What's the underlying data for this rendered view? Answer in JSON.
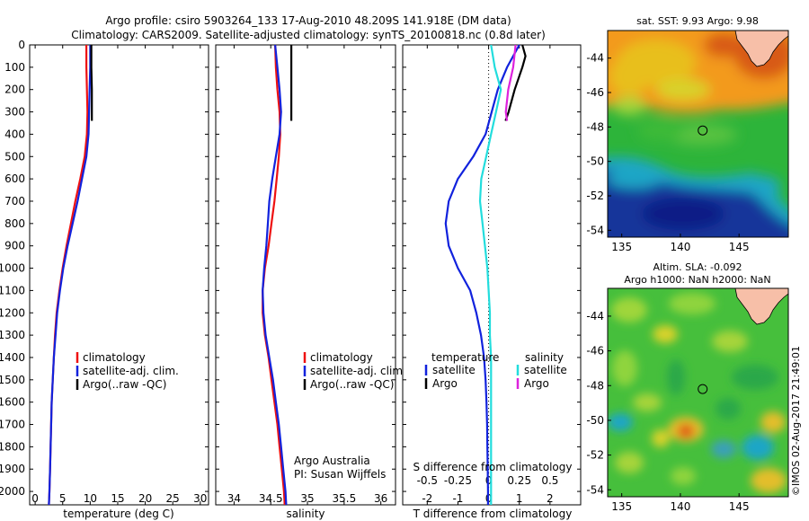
{
  "header": {
    "title_line1": "Argo profile: csiro 5903264_133 17-Aug-2010 48.209S 141.918E (DM data)",
    "title_line2": "Climatology: CARS2009. Satellite-adjusted climatology: synTS_20100818.nc (0.8d later)"
  },
  "colors": {
    "climatology": "#ee1111",
    "satellite": "#1122dd",
    "argo": "#000000",
    "sal_satellite": "#22dddd",
    "sal_argo": "#dd22dd"
  },
  "chart_data": [
    {
      "type": "line",
      "name": "temperature-profile",
      "xlabel": "temperature (deg C)",
      "ylabel": "",
      "xlim": [
        -1,
        31.5
      ],
      "ylim": [
        2060,
        0
      ],
      "xticks": [
        0,
        5,
        10,
        15,
        20,
        25,
        30
      ],
      "yticks": [
        0,
        100,
        200,
        300,
        400,
        500,
        600,
        700,
        800,
        900,
        1000,
        1100,
        1200,
        1300,
        1400,
        1500,
        1600,
        1700,
        1800,
        1900,
        2000
      ],
      "legend": [
        "climatology",
        "satellite-adj. clim.",
        "Argo(..raw -QC)"
      ],
      "series": [
        {
          "name": "climatology",
          "color": "#ee1111",
          "points": [
            [
              9.3,
              0
            ],
            [
              9.3,
              100
            ],
            [
              9.4,
              200
            ],
            [
              9.5,
              300
            ],
            [
              9.4,
              400
            ],
            [
              9.0,
              500
            ],
            [
              8.2,
              600
            ],
            [
              7.3,
              700
            ],
            [
              6.5,
              800
            ],
            [
              5.7,
              900
            ],
            [
              5.0,
              1000
            ],
            [
              4.4,
              1100
            ],
            [
              3.9,
              1200
            ],
            [
              3.6,
              1300
            ],
            [
              3.4,
              1400
            ],
            [
              3.2,
              1500
            ],
            [
              3.0,
              1600
            ],
            [
              2.9,
              1700
            ],
            [
              2.8,
              1800
            ],
            [
              2.7,
              1900
            ],
            [
              2.6,
              2000
            ],
            [
              2.5,
              2060
            ]
          ]
        },
        {
          "name": "satellite-adj. clim.",
          "color": "#1122dd",
          "points": [
            [
              10.0,
              0
            ],
            [
              10.0,
              100
            ],
            [
              9.9,
              200
            ],
            [
              9.8,
              300
            ],
            [
              9.7,
              400
            ],
            [
              9.3,
              500
            ],
            [
              8.5,
              600
            ],
            [
              7.7,
              700
            ],
            [
              6.8,
              800
            ],
            [
              5.9,
              900
            ],
            [
              5.1,
              1000
            ],
            [
              4.5,
              1100
            ],
            [
              4.0,
              1200
            ],
            [
              3.7,
              1300
            ],
            [
              3.4,
              1400
            ],
            [
              3.2,
              1500
            ],
            [
              3.0,
              1600
            ],
            [
              2.9,
              1700
            ],
            [
              2.8,
              1800
            ],
            [
              2.7,
              1900
            ],
            [
              2.6,
              2000
            ],
            [
              2.5,
              2060
            ]
          ]
        },
        {
          "name": "Argo(..raw -QC)",
          "color": "#000000",
          "points": [
            [
              10.2,
              0
            ],
            [
              10.2,
              100
            ],
            [
              10.3,
              200
            ],
            [
              10.3,
              300
            ],
            [
              10.3,
              340
            ]
          ]
        }
      ]
    },
    {
      "type": "line",
      "name": "salinity-profile",
      "xlabel": "salinity",
      "ylabel": "",
      "xlim": [
        33.75,
        36.2
      ],
      "ylim": [
        2060,
        0
      ],
      "xticks": [
        34,
        34.5,
        35,
        35.5,
        36
      ],
      "legend": [
        "climatology",
        "satellite-adj. clim.",
        "Argo(..raw -QC)"
      ],
      "annotation": [
        "Argo Australia",
        "PI: Susan Wijffels"
      ],
      "series": [
        {
          "name": "climatology",
          "color": "#ee1111",
          "points": [
            [
              34.56,
              0
            ],
            [
              34.57,
              100
            ],
            [
              34.59,
              200
            ],
            [
              34.62,
              300
            ],
            [
              34.63,
              400
            ],
            [
              34.61,
              500
            ],
            [
              34.58,
              600
            ],
            [
              34.55,
              700
            ],
            [
              34.51,
              800
            ],
            [
              34.47,
              900
            ],
            [
              34.42,
              1000
            ],
            [
              34.39,
              1100
            ],
            [
              34.39,
              1200
            ],
            [
              34.42,
              1300
            ],
            [
              34.47,
              1400
            ],
            [
              34.51,
              1500
            ],
            [
              34.55,
              1600
            ],
            [
              34.59,
              1700
            ],
            [
              34.62,
              1800
            ],
            [
              34.65,
              1900
            ],
            [
              34.68,
              2000
            ],
            [
              34.69,
              2060
            ]
          ]
        },
        {
          "name": "satellite-adj. clim.",
          "color": "#1122dd",
          "points": [
            [
              34.56,
              0
            ],
            [
              34.59,
              100
            ],
            [
              34.62,
              200
            ],
            [
              34.64,
              300
            ],
            [
              34.62,
              400
            ],
            [
              34.57,
              500
            ],
            [
              34.52,
              600
            ],
            [
              34.48,
              700
            ],
            [
              34.46,
              800
            ],
            [
              34.44,
              900
            ],
            [
              34.41,
              1000
            ],
            [
              34.39,
              1100
            ],
            [
              34.4,
              1200
            ],
            [
              34.43,
              1300
            ],
            [
              34.48,
              1400
            ],
            [
              34.53,
              1500
            ],
            [
              34.57,
              1600
            ],
            [
              34.61,
              1700
            ],
            [
              34.64,
              1800
            ],
            [
              34.67,
              1900
            ],
            [
              34.7,
              2000
            ],
            [
              34.71,
              2060
            ]
          ]
        },
        {
          "name": "Argo(..raw -QC)",
          "color": "#000000",
          "points": [
            [
              34.78,
              0
            ],
            [
              34.78,
              100
            ],
            [
              34.78,
              200
            ],
            [
              34.78,
              300
            ],
            [
              34.78,
              340
            ]
          ]
        }
      ]
    },
    {
      "type": "line",
      "name": "difference-profile",
      "xlabel": "T difference from climatology",
      "xlabel_top": "S difference from climatology",
      "xlim": [
        -2.8,
        3.0
      ],
      "ylim": [
        2060,
        0
      ],
      "xticks": [
        -2,
        -1,
        0,
        1,
        2
      ],
      "xticks_S": [
        -0.5,
        -0.25,
        0,
        0.25,
        0.5
      ],
      "legend_header": [
        "temperature",
        "salinity"
      ],
      "legend": [
        "satellite",
        "Argo",
        "satellite",
        "Argo"
      ],
      "series": [
        {
          "name": "T satellite",
          "color": "#1122dd",
          "points": [
            [
              1.0,
              0
            ],
            [
              0.6,
              100
            ],
            [
              0.3,
              200
            ],
            [
              0.1,
              300
            ],
            [
              -0.1,
              400
            ],
            [
              -0.5,
              500
            ],
            [
              -1.0,
              600
            ],
            [
              -1.3,
              700
            ],
            [
              -1.4,
              800
            ],
            [
              -1.3,
              900
            ],
            [
              -1.0,
              1000
            ],
            [
              -0.6,
              1100
            ],
            [
              -0.4,
              1200
            ],
            [
              -0.25,
              1300
            ],
            [
              -0.15,
              1400
            ],
            [
              -0.1,
              1500
            ],
            [
              -0.07,
              1600
            ],
            [
              -0.05,
              1700
            ],
            [
              -0.04,
              1800
            ],
            [
              -0.03,
              1900
            ],
            [
              -0.02,
              2000
            ],
            [
              -0.02,
              2060
            ]
          ]
        },
        {
          "name": "T Argo",
          "color": "#000000",
          "points": [
            [
              1.1,
              0
            ],
            [
              1.2,
              50
            ],
            [
              1.1,
              100
            ],
            [
              0.85,
              200
            ],
            [
              0.65,
              300
            ],
            [
              0.55,
              340
            ]
          ]
        },
        {
          "name": "S satellite",
          "color": "#22dddd",
          "points": [
            [
              0.02,
              0
            ],
            [
              0.05,
              100
            ],
            [
              0.1,
              200
            ],
            [
              0.06,
              300
            ],
            [
              0.02,
              400
            ],
            [
              -0.02,
              500
            ],
            [
              -0.06,
              600
            ],
            [
              -0.07,
              700
            ],
            [
              -0.05,
              800
            ],
            [
              -0.03,
              900
            ],
            [
              -0.01,
              1000
            ],
            [
              0.0,
              1100
            ],
            [
              0.01,
              1200
            ],
            [
              0.01,
              1300
            ],
            [
              0.02,
              1400
            ],
            [
              0.02,
              1500
            ],
            [
              0.02,
              1600
            ],
            [
              0.02,
              1700
            ],
            [
              0.02,
              1800
            ],
            [
              0.02,
              1900
            ],
            [
              0.02,
              2000
            ],
            [
              0.02,
              2060
            ]
          ]
        },
        {
          "name": "S Argo",
          "color": "#dd22dd",
          "points": [
            [
              0.22,
              0
            ],
            [
              0.2,
              100
            ],
            [
              0.16,
              200
            ],
            [
              0.14,
              300
            ],
            [
              0.15,
              340
            ]
          ]
        }
      ]
    },
    {
      "type": "heatmap",
      "name": "sst-map",
      "title": "sat. SST: 9.93 Argo: 9.98",
      "xlim": [
        133.8,
        149.2
      ],
      "ylim": [
        -54.4,
        -42.4
      ],
      "xticks": [
        135,
        140,
        145
      ],
      "yticks": [
        -44,
        -46,
        -48,
        -50,
        -52,
        -54
      ],
      "marker": [
        141.9,
        -48.2
      ]
    },
    {
      "type": "heatmap",
      "name": "sla-map",
      "title": [
        "Altim. SLA: -0.092",
        "Argo h1000: NaN h2000: NaN"
      ],
      "xlim": [
        133.8,
        149.2
      ],
      "ylim": [
        -54.4,
        -42.4
      ],
      "xticks": [
        135,
        140,
        145
      ],
      "yticks": [
        -44,
        -46,
        -48,
        -50,
        -52,
        -54
      ],
      "marker": [
        141.9,
        -48.2
      ]
    }
  ],
  "footer": {
    "credit": "©IMOS 02-Aug-2017 21:49:01"
  }
}
